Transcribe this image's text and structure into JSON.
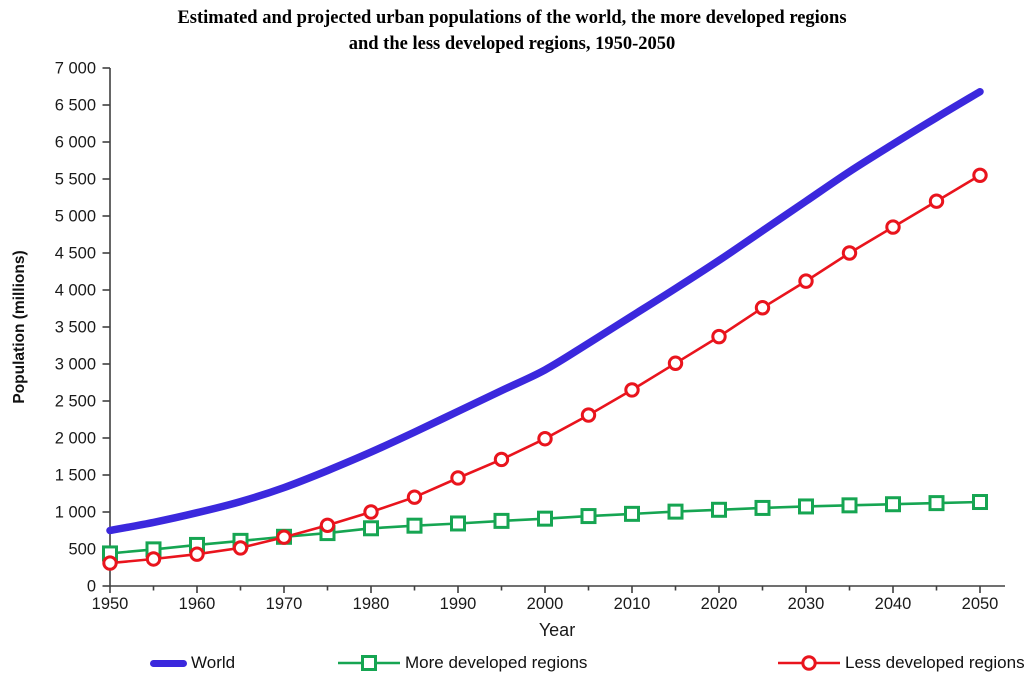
{
  "title": {
    "line1": "Estimated and projected urban populations of the world, the more developed regions",
    "line2": "and the less developed regions, 1950-2050"
  },
  "chart_data": {
    "type": "line",
    "title": "Estimated and projected urban populations of the world, the more developed regions and the less developed regions, 1950-2050",
    "xlabel": "Year",
    "ylabel": "Population (millions)",
    "xlim": [
      1950,
      2050
    ],
    "ylim": [
      0,
      7000
    ],
    "grid": false,
    "legend_position": "bottom",
    "x": [
      1950,
      1955,
      1960,
      1965,
      1970,
      1975,
      1980,
      1985,
      1990,
      1995,
      2000,
      2005,
      2010,
      2015,
      2020,
      2025,
      2030,
      2035,
      2040,
      2045,
      2050
    ],
    "x_tick_labels": [
      "1950",
      "1960",
      "1970",
      "1980",
      "1990",
      "2000",
      "2010",
      "2020",
      "2030",
      "2040",
      "2050"
    ],
    "y_tick_labels": [
      "7 000",
      "6 500",
      "6 000",
      "5 500",
      "5 000",
      "4 500",
      "4 000",
      "3 500",
      "3 000",
      "2 500",
      "2 000",
      "1 500",
      "1 000",
      "500",
      "0"
    ],
    "y_tick_values": [
      7000,
      6500,
      6000,
      5500,
      5000,
      4500,
      4000,
      3500,
      3000,
      2500,
      2000,
      1500,
      1000,
      500,
      0
    ],
    "x_minor_tick_step": 5,
    "series": [
      {
        "name": "World",
        "color": "#3b28dd",
        "marker": "none",
        "line_width": 7.5,
        "values": [
          750,
          860,
          990,
          1140,
          1330,
          1560,
          1810,
          2080,
          2360,
          2640,
          2920,
          3280,
          3650,
          4020,
          4400,
          4800,
          5200,
          5600,
          5970,
          6330,
          6680
        ]
      },
      {
        "name": "More developed regions",
        "color": "#16a552",
        "marker": "square",
        "line_width": 2.6,
        "values": [
          440,
          495,
          555,
          610,
          665,
          715,
          780,
          815,
          845,
          880,
          910,
          945,
          975,
          1005,
          1030,
          1055,
          1075,
          1090,
          1105,
          1120,
          1135
        ]
      },
      {
        "name": "Less developed regions",
        "color": "#e9141d",
        "marker": "circle",
        "line_width": 2.6,
        "values": [
          310,
          365,
          430,
          515,
          660,
          820,
          1000,
          1200,
          1460,
          1710,
          1990,
          2310,
          2650,
          3010,
          3370,
          3760,
          4120,
          4500,
          4850,
          5200,
          5550
        ]
      }
    ]
  }
}
